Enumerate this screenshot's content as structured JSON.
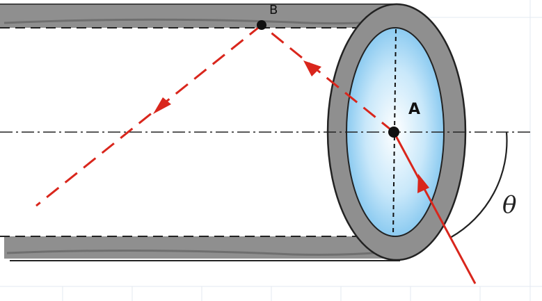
{
  "labels": {
    "point_a": "A",
    "point_b": "B",
    "angle": "θ"
  },
  "colors": {
    "wall_gray": "#8f8f8f",
    "outline": "#222222",
    "ray_red": "#d9261c",
    "lens_blue_center": "#ffffff",
    "lens_blue_edge": "#7cc3ee",
    "grid": "#dfe6ee"
  },
  "icons": [
    "incident-ray-arrow",
    "reflected-ray-arrow",
    "exit-ray-arrow"
  ]
}
